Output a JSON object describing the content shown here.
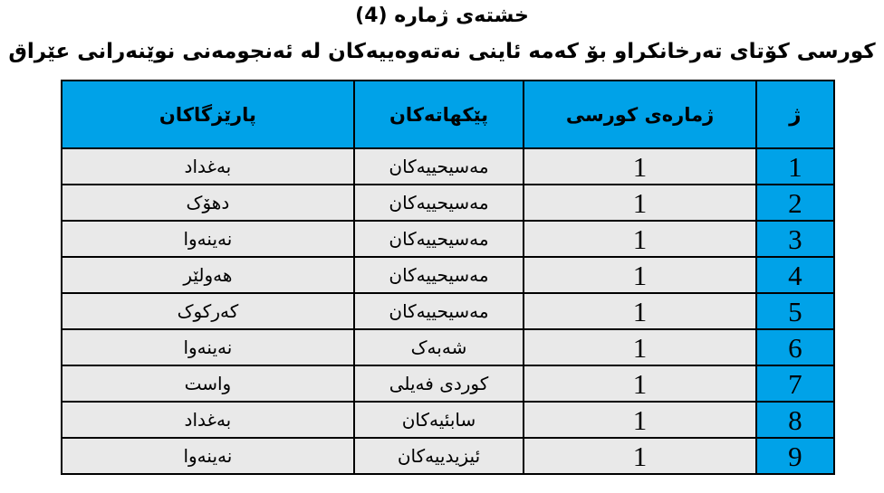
{
  "document": {
    "title": "خشتەی ژمارە (4)",
    "subtitle": "کورسی کۆتای تەرخانکراو بۆ کەمە ئاینی نەتەوەییەکان لە ئەنجومەنی نوێنەرانی عێراق"
  },
  "table": {
    "headers": {
      "no": "ژ",
      "seats": "ژمارەی کورسی",
      "component": "پێکهاتەکان",
      "province": "پارێزگاکان"
    },
    "rows": [
      {
        "no": "1",
        "seats": "1",
        "component": "مەسیحییەکان",
        "province": "بەغداد"
      },
      {
        "no": "2",
        "seats": "1",
        "component": "مەسیحییەکان",
        "province": "دهۆک"
      },
      {
        "no": "3",
        "seats": "1",
        "component": "مەسیحییەکان",
        "province": "نەینەوا"
      },
      {
        "no": "4",
        "seats": "1",
        "component": "مەسیحییەکان",
        "province": "هەولێر"
      },
      {
        "no": "5",
        "seats": "1",
        "component": "مەسیحییەکان",
        "province": "کەرکوک"
      },
      {
        "no": "6",
        "seats": "1",
        "component": "شەبەک",
        "province": "نەینەوا"
      },
      {
        "no": "7",
        "seats": "1",
        "component": "کوردی فەیلی",
        "province": "واست"
      },
      {
        "no": "8",
        "seats": "1",
        "component": "سابئیەکان",
        "province": "بەغداد"
      },
      {
        "no": "9",
        "seats": "1",
        "component": "ئیزیدییەکان",
        "province": "نەینەوا"
      }
    ]
  },
  "colors": {
    "header_bg": "#00a2e8",
    "row_bg": "#e9e9e9",
    "border": "#000000"
  }
}
